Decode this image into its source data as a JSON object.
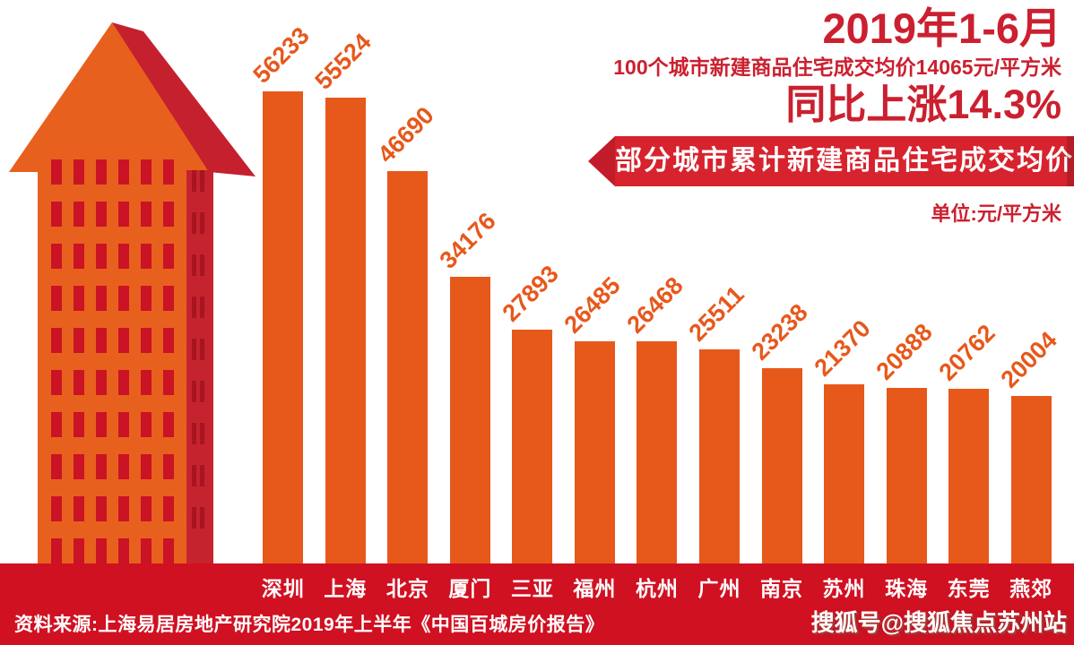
{
  "page": {
    "background": "#ffffff"
  },
  "header": {
    "title_line1": "2019年1-6月",
    "subtitle": "100个城市新建商品住宅成交均价14065元/平方米",
    "title_line2": "同比上涨14.3%",
    "banner_title": "部分城市累计新建商品住宅成交均价",
    "unit_label": "单位:元/平方米"
  },
  "chart_data": {
    "type": "bar",
    "title": "部分城市累计新建商品住宅成交均价",
    "unit": "元/平方米",
    "categories": [
      "深圳",
      "上海",
      "北京",
      "厦门",
      "三亚",
      "福州",
      "杭州",
      "广州",
      "南京",
      "苏州",
      "珠海",
      "东莞",
      "燕郊"
    ],
    "values": [
      56233,
      55524,
      46690,
      34176,
      27893,
      26485,
      26468,
      25511,
      23238,
      21370,
      20888,
      20762,
      20004
    ],
    "ylim": [
      0,
      56233
    ],
    "grid": false,
    "legend": false,
    "value_labels": "rotated above bars",
    "bar_color": "#e7581b",
    "label_color": "#e7581b"
  },
  "footer": {
    "source": "资料来源:上海易居房地产研究院2019年上半年《中国百城房价报告》",
    "watermark": "搜狐号@搜狐焦点苏州站"
  },
  "colors": {
    "bar_orange": "#e7581b",
    "building_orange": "#e8601e",
    "crimson_text": "#cb2030",
    "banner_red": "#d7232e",
    "banner_tip_red": "#c21c2a",
    "band_red": "#d01122",
    "window_red": "#ca1325",
    "roof_shadow_red": "#c5202e",
    "strip_red": "#c5242e",
    "strip_window_red": "#a81420"
  }
}
